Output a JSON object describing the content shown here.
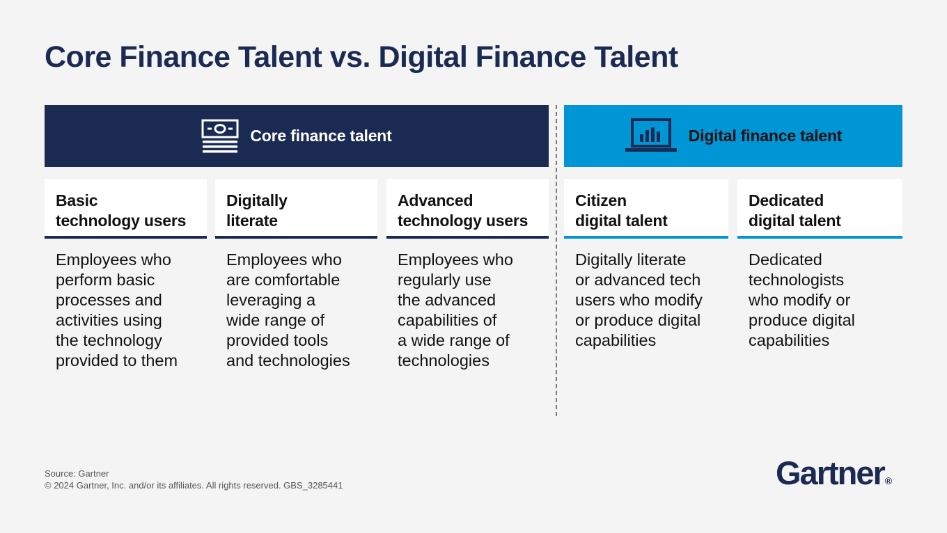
{
  "title": "Core Finance Talent vs. Digital Finance Talent",
  "banners": {
    "core": {
      "label": "Core finance talent",
      "icon": "money-bill-icon",
      "color": "#1a2a52"
    },
    "digital": {
      "label": "Digital finance talent",
      "icon": "bar-chart-monitor-icon",
      "color": "#0095d5"
    }
  },
  "columns": [
    {
      "title_lines": [
        "Basic",
        "technology users"
      ],
      "desc_lines": [
        "Employees who",
        "perform basic",
        "processes and",
        "activities using",
        "the technology",
        "provided to them"
      ]
    },
    {
      "title_lines": [
        "Digitally",
        "literate"
      ],
      "desc_lines": [
        "Employees who",
        "are comfortable",
        "leveraging a",
        "wide range of",
        "provided tools",
        "and technologies"
      ]
    },
    {
      "title_lines": [
        "Advanced",
        "technology users"
      ],
      "desc_lines": [
        "Employees who",
        "regularly use",
        "the advanced",
        "capabilities of",
        "a wide range of",
        "technologies"
      ]
    },
    {
      "title_lines": [
        "Citizen",
        "digital talent"
      ],
      "desc_lines": [
        "Digitally literate",
        "or advanced tech",
        "users who modify",
        "or produce digital",
        "capabilities"
      ]
    },
    {
      "title_lines": [
        "Dedicated",
        "digital talent"
      ],
      "desc_lines": [
        "Dedicated",
        "technologists",
        "who modify or",
        "produce digital",
        "capabilities"
      ]
    }
  ],
  "footer": {
    "source": "Source: Gartner",
    "copyright": "© 2024 Gartner, Inc. and/or its affiliates. All rights reserved. GBS_3285441"
  },
  "logo": {
    "text": "Gartner",
    "mark": "®"
  }
}
